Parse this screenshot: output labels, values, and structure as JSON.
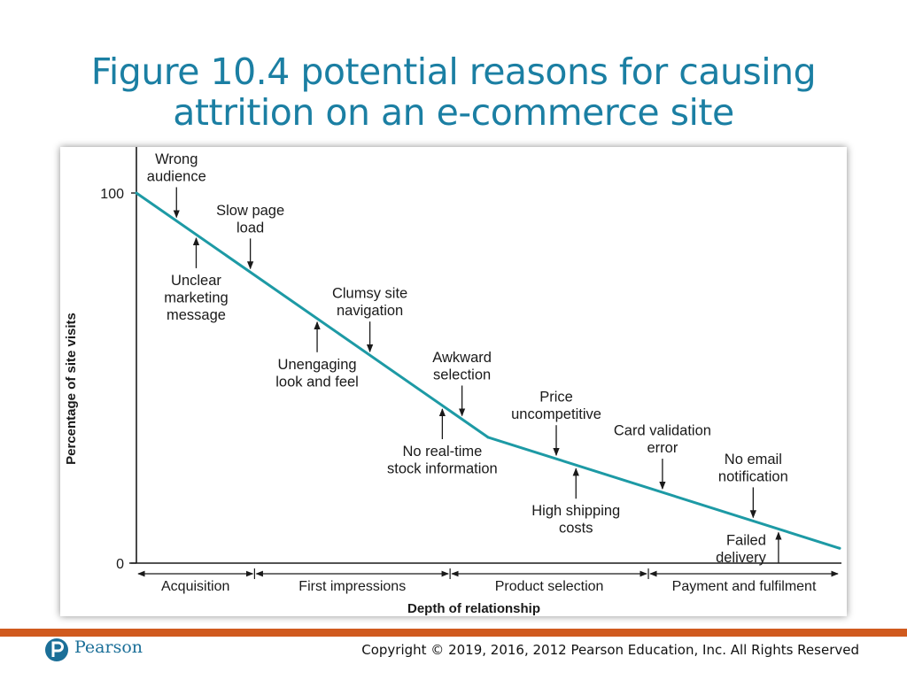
{
  "slide": {
    "title_line1": "Figure 10.4 potential reasons for causing",
    "title_line2": "attrition on an e-commerce site",
    "copyright": "Copyright © 2019, 2016, 2012 Pearson Education, Inc. All Rights Reserved",
    "logo": {
      "text": "Pearson",
      "icon": "pearson-p-icon",
      "color": "#1b6f98"
    },
    "colors": {
      "title": "#1b7fa3",
      "footer_stripe": "#d05a1e",
      "line": "#1d9aa5"
    }
  },
  "chart_data": {
    "type": "line",
    "title": "",
    "xlabel": "Depth of relationship",
    "ylabel": "Percentage of site visits",
    "yticks": [
      "100",
      "0"
    ],
    "ylim": [
      0,
      100
    ],
    "xlim": [
      0,
      100
    ],
    "grid": false,
    "series": [
      {
        "x": [
          0,
          50,
          100
        ],
        "y": [
          100,
          34,
          4
        ]
      }
    ],
    "stages": [
      {
        "label": "Acquisition",
        "from": 0,
        "to": 16.8
      },
      {
        "label": "First impressions",
        "from": 16.8,
        "to": 44.6
      },
      {
        "label": "Product selection",
        "from": 44.6,
        "to": 72.8
      },
      {
        "label": "Payment and fulfilment",
        "from": 72.8,
        "to": 100
      }
    ],
    "annotations": [
      {
        "lines": [
          "Wrong",
          "audience"
        ],
        "x": 5.7,
        "side": "above"
      },
      {
        "lines": [
          "Unclear",
          "marketing",
          "message"
        ],
        "x": 8.5,
        "side": "below"
      },
      {
        "lines": [
          "Slow page",
          "load"
        ],
        "x": 16.2,
        "side": "above"
      },
      {
        "lines": [
          "Unengaging",
          "look and feel"
        ],
        "x": 25.7,
        "side": "below"
      },
      {
        "lines": [
          "Clumsy site",
          "navigation"
        ],
        "x": 33.2,
        "side": "above"
      },
      {
        "lines": [
          "No real-time",
          "stock information"
        ],
        "x": 43.5,
        "side": "below"
      },
      {
        "lines": [
          "Awkward",
          "selection"
        ],
        "x": 46.3,
        "side": "above"
      },
      {
        "lines": [
          "Price",
          "uncompetitive"
        ],
        "x": 59.7,
        "side": "above"
      },
      {
        "lines": [
          "High shipping",
          "costs"
        ],
        "x": 62.5,
        "side": "below"
      },
      {
        "lines": [
          "Card validation",
          "error"
        ],
        "x": 74.8,
        "side": "above"
      },
      {
        "lines": [
          "No email",
          "notification"
        ],
        "x": 87.7,
        "side": "above"
      },
      {
        "lines": [
          "Failed",
          "delivery"
        ],
        "x": 91.3,
        "side": "below"
      }
    ]
  }
}
